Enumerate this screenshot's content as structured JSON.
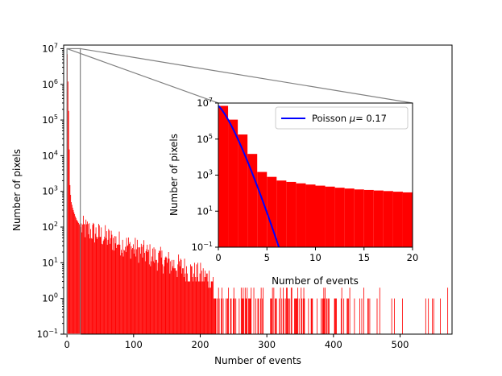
{
  "chart_data": [
    {
      "id": "main",
      "type": "bar",
      "title": "",
      "xlabel": "Number of events",
      "ylabel": "Number of pixels",
      "xlim": [
        -5,
        578
      ],
      "ylim_log10": [
        -1,
        7.1
      ],
      "yscale": "log",
      "xticks": [
        0,
        100,
        200,
        300,
        400,
        500
      ],
      "xtick_labels": [
        "0",
        "100",
        "200",
        "300",
        "400",
        "500"
      ],
      "yticks_exp": [
        -1,
        0,
        1,
        2,
        3,
        4,
        5,
        6,
        7
      ],
      "ytick_base": "10",
      "ytick_exponents": [
        "−1",
        "0",
        "1",
        "2",
        "3",
        "4",
        "5",
        "6",
        "7"
      ],
      "bar_color": "#ff0000",
      "bins": "1 event per bin, 0–577",
      "values_first_bins": [
        7000000,
        1200000,
        180000,
        15000,
        1500,
        800,
        500,
        420,
        350,
        300,
        260,
        230,
        200,
        180,
        160,
        150,
        140,
        130,
        120,
        110,
        100
      ],
      "tail_approx": "counts fall roughly exponentially from ~100 at 20 events to ~1 beyond 300 events; sparse single counts up to ~577 events"
    },
    {
      "id": "inset",
      "type": "bar",
      "title": "",
      "xlabel": "Number of events",
      "ylabel": "Number of pixels",
      "xlim": [
        0,
        20
      ],
      "ylim_log10": [
        -1,
        7
      ],
      "yscale": "log",
      "xticks": [
        0,
        5,
        10,
        15,
        20
      ],
      "xtick_labels": [
        "0",
        "5",
        "10",
        "15",
        "20"
      ],
      "yticks_exp": [
        -1,
        1,
        3,
        5,
        7
      ],
      "ytick_base": "10",
      "ytick_exponents": [
        "−1",
        "1",
        "3",
        "5",
        "7"
      ],
      "bar_color": "#ff0000",
      "bins": [
        0,
        1,
        2,
        3,
        4,
        5,
        6,
        7,
        8,
        9,
        10,
        11,
        12,
        13,
        14,
        15,
        16,
        17,
        18,
        19
      ],
      "values": [
        7000000,
        1200000,
        180000,
        15000,
        1500,
        800,
        500,
        420,
        350,
        300,
        260,
        230,
        200,
        180,
        160,
        150,
        140,
        130,
        120,
        110
      ],
      "series": [
        {
          "name": "Poisson",
          "legend_prefix": "Poisson",
          "legend_symbol": "μ",
          "legend_value": "= 0.17",
          "color": "#0000ff",
          "mu": 0.17,
          "N": 8400000
        }
      ],
      "legend_position": "top-right",
      "zoom_source_range": [
        0,
        20
      ]
    }
  ]
}
